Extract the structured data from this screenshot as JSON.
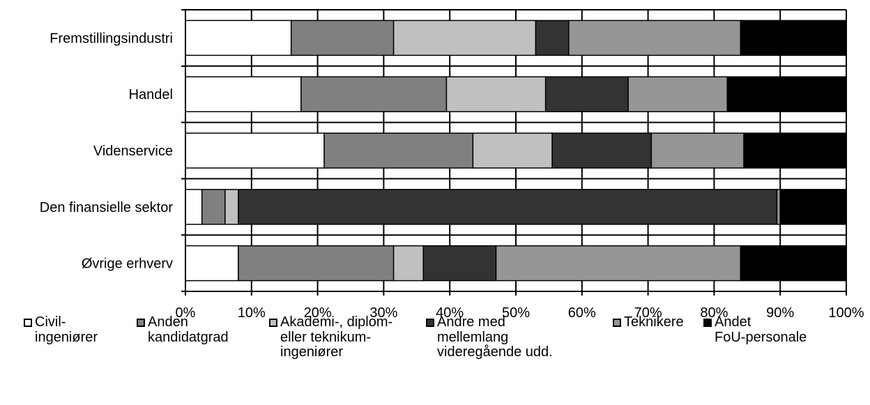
{
  "chart_data": {
    "type": "bar",
    "orientation": "horizontal",
    "stacked": "percent",
    "categories": [
      "Fremstillingsindustri",
      "Handel",
      "Videnservice",
      "Den finansielle sektor",
      "Øvrige erhverv"
    ],
    "series": [
      {
        "name": "Civil-\ningeniører",
        "color": "#ffffff",
        "values": [
          16,
          17.5,
          21,
          2.5,
          8
        ]
      },
      {
        "name": "Anden\nkandidatgrad",
        "color": "#808080",
        "values": [
          15.5,
          22,
          22.5,
          3.5,
          23.5
        ]
      },
      {
        "name": "Akademi-, diplom-\neller teknikum-\ningeniører",
        "color": "#c0c0c0",
        "values": [
          21.5,
          15,
          12,
          2,
          4.5
        ]
      },
      {
        "name": "Andre med\nmellemlang\nvideregående udd.",
        "color": "#333333",
        "values": [
          5,
          12.5,
          15,
          81.5,
          11
        ]
      },
      {
        "name": "Teknikere",
        "color": "#969696",
        "values": [
          26,
          15,
          14,
          0.5,
          37
        ]
      },
      {
        "name": "Andet\nFoU-personale",
        "color": "#000000",
        "values": [
          16,
          18,
          15.5,
          10,
          16
        ]
      }
    ],
    "xlim": [
      0,
      100
    ],
    "xticks": [
      "0%",
      "10%",
      "20%",
      "30%",
      "40%",
      "50%",
      "60%",
      "70%",
      "80%",
      "90%",
      "100%"
    ],
    "grid": true,
    "legend": "bottom"
  }
}
